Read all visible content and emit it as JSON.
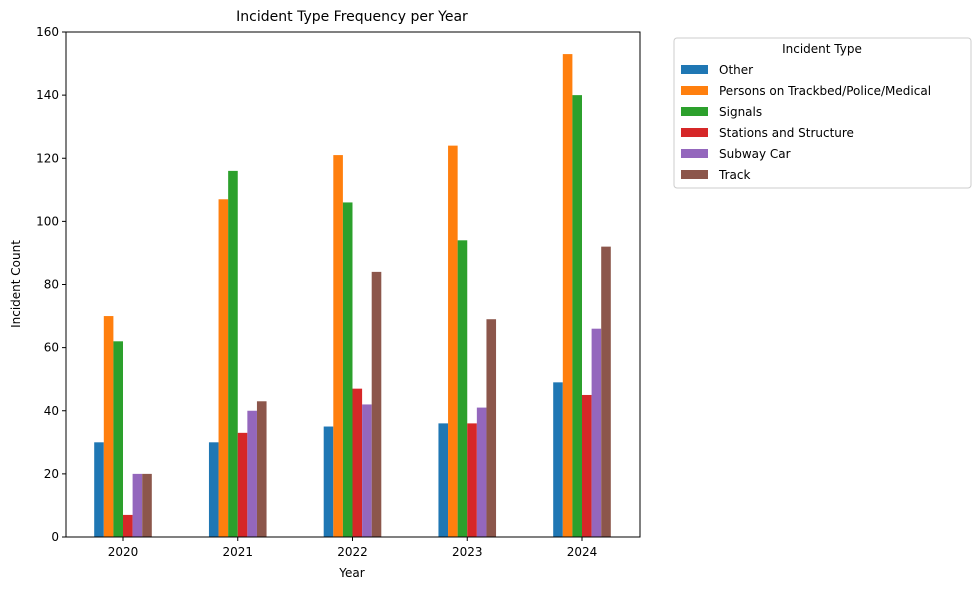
{
  "chart_data": {
    "type": "bar",
    "title": "Incident Type Frequency per Year",
    "xlabel": "Year",
    "ylabel": "Incident Count",
    "categories": [
      "2020",
      "2021",
      "2022",
      "2023",
      "2024"
    ],
    "ylim": [
      0,
      160
    ],
    "yticks": [
      0,
      20,
      40,
      60,
      80,
      100,
      120,
      140,
      160
    ],
    "legend_title": "Incident Type",
    "legend_position": "outside-top-right",
    "grid": false,
    "series": [
      {
        "name": "Other",
        "color": "#1f77b4",
        "values": [
          30,
          30,
          35,
          36,
          49
        ]
      },
      {
        "name": "Persons on Trackbed/Police/Medical",
        "color": "#ff7f0e",
        "values": [
          70,
          107,
          121,
          124,
          153
        ]
      },
      {
        "name": "Signals",
        "color": "#2ca02c",
        "values": [
          62,
          116,
          106,
          94,
          140
        ]
      },
      {
        "name": "Stations and Structure",
        "color": "#d62728",
        "values": [
          7,
          33,
          47,
          36,
          45
        ]
      },
      {
        "name": "Subway Car",
        "color": "#9467bd",
        "values": [
          20,
          40,
          42,
          41,
          66
        ]
      },
      {
        "name": "Track",
        "color": "#8c564b",
        "values": [
          20,
          43,
          84,
          69,
          92
        ]
      }
    ]
  }
}
